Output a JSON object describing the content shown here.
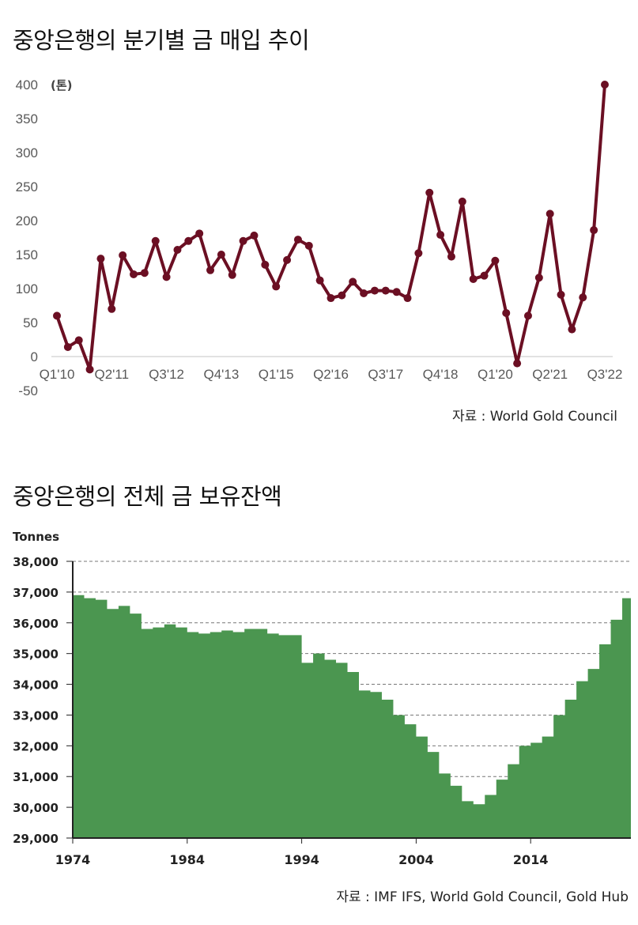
{
  "chart_data": [
    {
      "type": "line",
      "title": "중앙은행의 분기별 금 매입 추이",
      "unit_label": "(톤)",
      "source": "자료 : World Gold Council",
      "ylim": [
        -50,
        400
      ],
      "yticks": [
        400,
        350,
        300,
        250,
        200,
        150,
        100,
        50,
        0,
        -50
      ],
      "xtick_labels": [
        "Q1'10",
        "Q2'11",
        "Q3'12",
        "Q4'13",
        "Q1'15",
        "Q2'16",
        "Q3'17",
        "Q4'18",
        "Q1'20",
        "Q2'21",
        "Q3'22"
      ],
      "xtick_every": 5,
      "start_quarter": "Q1'10",
      "values": [
        60,
        14,
        24,
        -19,
        144,
        70,
        149,
        121,
        123,
        170,
        117,
        157,
        170,
        181,
        127,
        150,
        120,
        170,
        178,
        135,
        103,
        142,
        172,
        163,
        112,
        86,
        90,
        110,
        93,
        97,
        97,
        95,
        86,
        152,
        241,
        179,
        147,
        228,
        114,
        119,
        141,
        64,
        -10,
        60,
        116,
        210,
        91,
        40,
        87,
        186,
        400
      ],
      "color": "#6B0F23",
      "grid": false
    },
    {
      "type": "area",
      "title": "중앙은행의 전체 금 보유잔액",
      "ylabel": "Tonnes",
      "source": "자료 :  IMF IFS, World Gold Council, Gold Hub",
      "ylim": [
        29000,
        38000
      ],
      "yticks": [
        "38,000",
        "37,000",
        "36,000",
        "35,000",
        "34,000",
        "33,000",
        "32,000",
        "31,000",
        "30,000",
        "29,000"
      ],
      "xtick_labels": [
        "1974",
        "1984",
        "1994",
        "2004",
        "2014"
      ],
      "x": [
        1974,
        1975,
        1976,
        1977,
        1978,
        1979,
        1980,
        1981,
        1982,
        1983,
        1984,
        1985,
        1986,
        1987,
        1988,
        1989,
        1990,
        1991,
        1992,
        1993,
        1994,
        1995,
        1996,
        1997,
        1998,
        1999,
        2000,
        2001,
        2002,
        2003,
        2004,
        2005,
        2006,
        2007,
        2008,
        2009,
        2010,
        2011,
        2012,
        2013,
        2014,
        2015,
        2016,
        2017,
        2018,
        2019,
        2020,
        2021,
        2022
      ],
      "values": [
        36900,
        36800,
        36750,
        36450,
        36550,
        36300,
        35800,
        35850,
        35950,
        35850,
        35700,
        35650,
        35700,
        35750,
        35700,
        35800,
        35800,
        35650,
        35600,
        35600,
        34700,
        35000,
        34800,
        34700,
        34400,
        33800,
        33750,
        33500,
        33000,
        32700,
        32300,
        31800,
        31100,
        30700,
        30200,
        30100,
        30400,
        30900,
        31400,
        32000,
        32100,
        32300,
        33000,
        33500,
        34100,
        34500,
        35300,
        36100,
        36800
      ],
      "color": "#4B9650",
      "grid": "horizontal dashed"
    }
  ]
}
